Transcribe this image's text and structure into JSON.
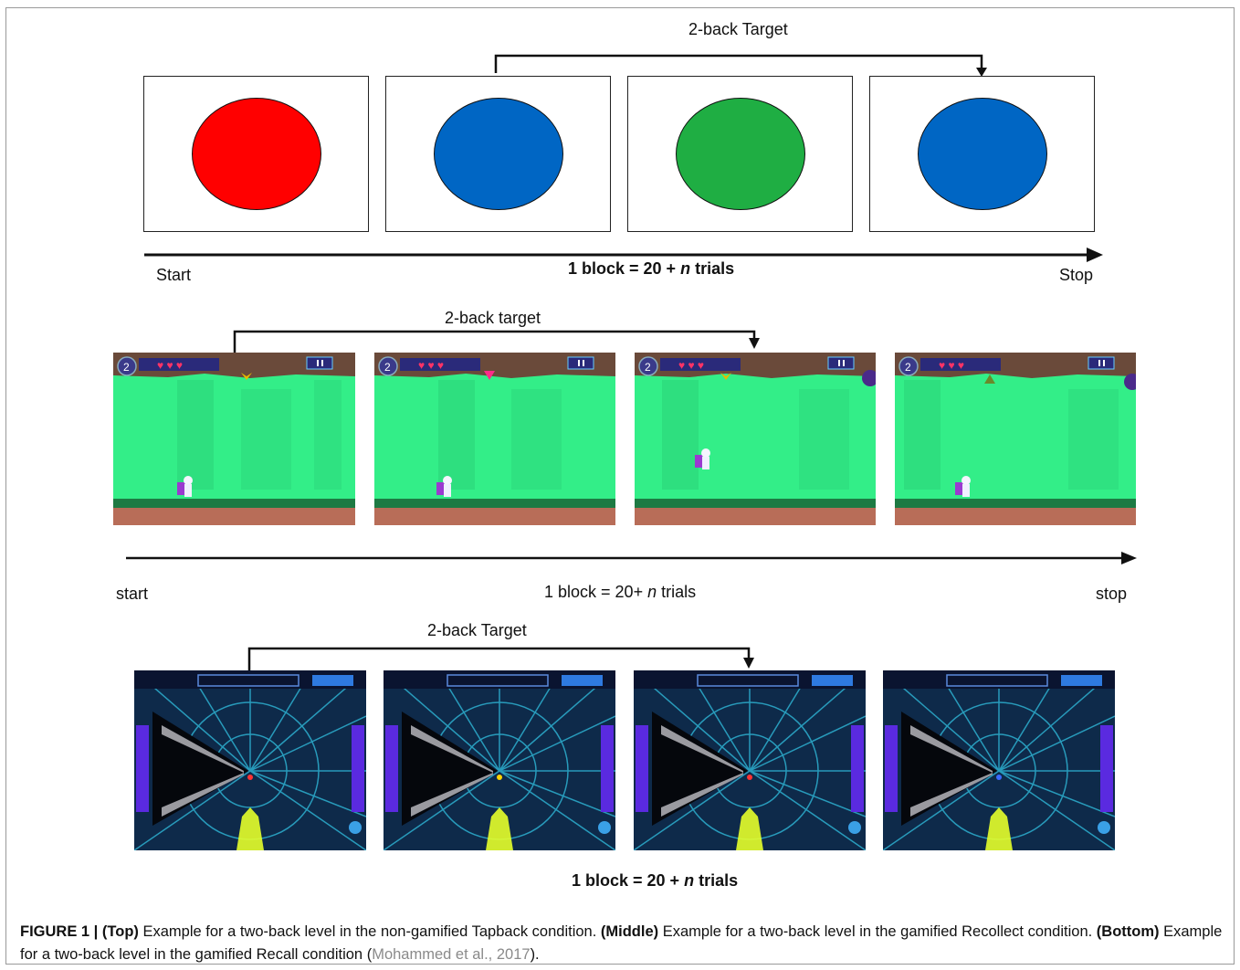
{
  "colors": {
    "red": "#ff0000",
    "blue": "#0066c4",
    "green": "#1fae43",
    "game_grass": "#33ee88",
    "game_sky": "#6a4a3a",
    "game_ground": "#b86d58",
    "tunnel_bg": "#0e2a4a",
    "ref": "#8a8a8a"
  },
  "top": {
    "target_label": "2-back Target",
    "start": "Start",
    "stop": "Stop",
    "block_prefix": "1 block = 20 + ",
    "block_n": "n",
    "block_suffix": " trials",
    "stimuli": [
      "red",
      "blue",
      "green",
      "blue"
    ]
  },
  "middle": {
    "target_label": "2-back target",
    "start": "start",
    "stop": "stop",
    "block_prefix": "1 block = 20+ ",
    "block_n": "n",
    "block_suffix": " trials",
    "level": "2"
  },
  "bottom": {
    "target_label": "2-back Target",
    "block_prefix": "1 block = 20 + ",
    "block_n": "n",
    "block_suffix": " trials"
  },
  "caption": {
    "figure": "FIGURE 1 | ",
    "top_head": "(Top)",
    "top_text": " Example for a two-back level in the non-gamified Tapback condition. ",
    "middle_head": "(Middle)",
    "middle_text": " Example for a two-back level in the gamified Recollect condition. ",
    "bottom_head": "(Bottom)",
    "bottom_text": " Example for a two-back level in the gamified Recall condition (",
    "ref": "Mohammed et al., 2017",
    "end": ")."
  }
}
